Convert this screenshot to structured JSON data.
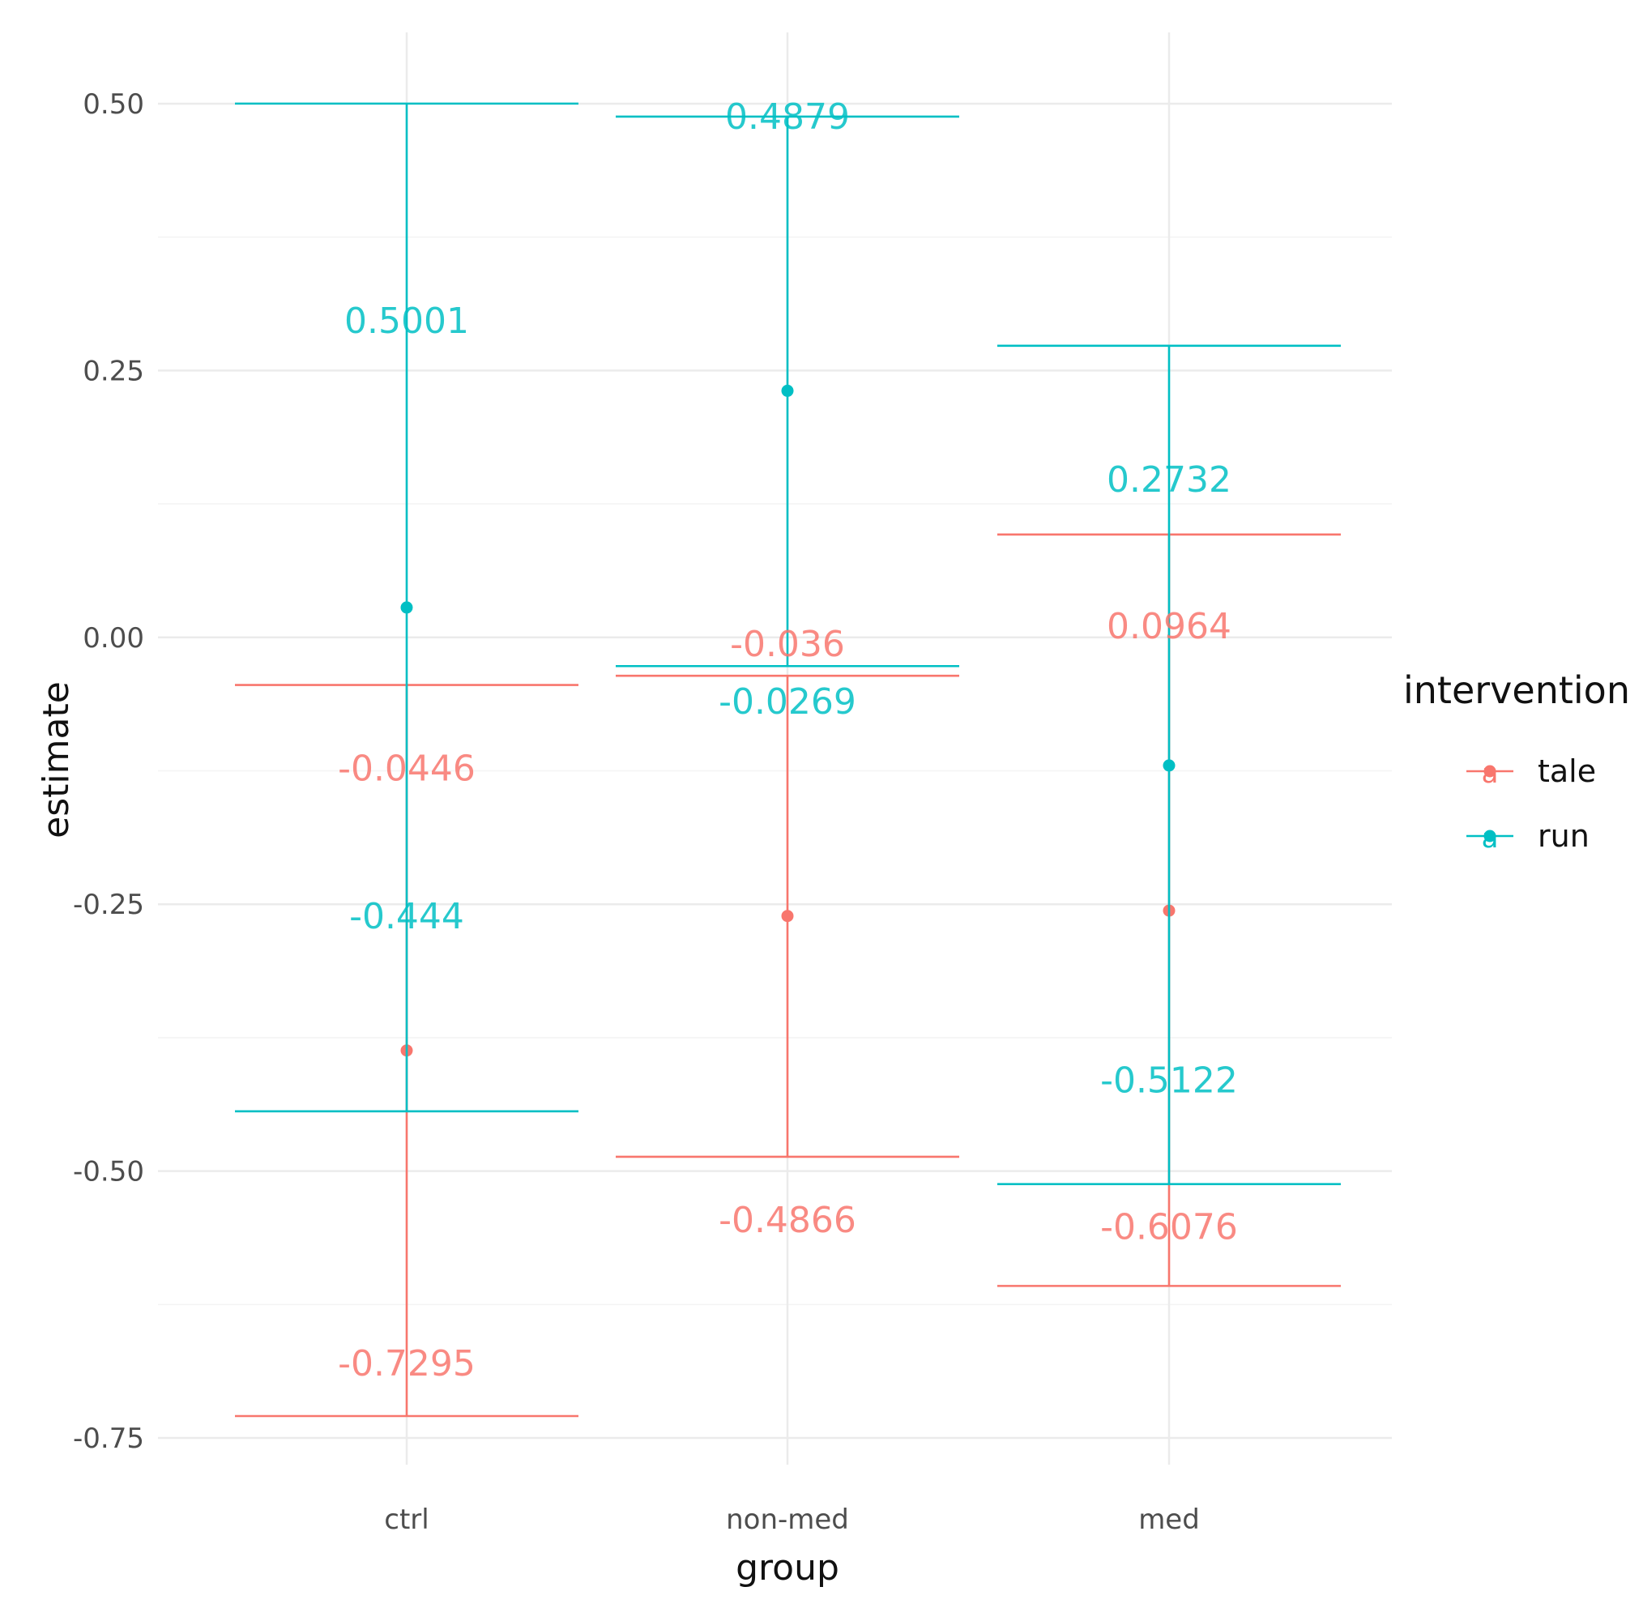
{
  "chart_data": {
    "type": "errorbar",
    "title": "",
    "xlabel": "group",
    "ylabel": "estimate",
    "categories": [
      "ctrl",
      "non-med",
      "med"
    ],
    "ylim": [
      -0.8,
      0.55
    ],
    "yticks": [
      0.5,
      0.25,
      0.0,
      -0.25,
      -0.5,
      -0.75
    ],
    "ytick_labels": [
      "0.50",
      "0.25",
      "0.00",
      "-0.25",
      "-0.50",
      "-0.75"
    ],
    "legend": {
      "title": "intervention",
      "position": "right",
      "entries": [
        "tale",
        "run"
      ]
    },
    "series": [
      {
        "name": "tale",
        "color": "#F8766D",
        "estimates": [
          -0.387,
          -0.261,
          -0.256
        ],
        "upper": [
          -0.0446,
          -0.036,
          0.0964
        ],
        "lower": [
          -0.7295,
          -0.4866,
          -0.6076
        ],
        "upper_labels": [
          "-0.0446",
          "-0.036",
          "0.0964"
        ],
        "lower_labels": [
          "-0.7295",
          "-0.4866",
          "-0.6076"
        ]
      },
      {
        "name": "run",
        "color": "#00BFC4",
        "estimates": [
          0.028,
          0.231,
          -0.12
        ],
        "upper": [
          0.5001,
          0.4879,
          0.2732
        ],
        "lower": [
          -0.444,
          -0.0269,
          -0.5122
        ],
        "upper_labels": [
          "0.5001",
          "0.4879",
          "0.2732"
        ],
        "lower_labels": [
          "-0.444",
          "-0.0269",
          "-0.5122"
        ]
      }
    ]
  }
}
